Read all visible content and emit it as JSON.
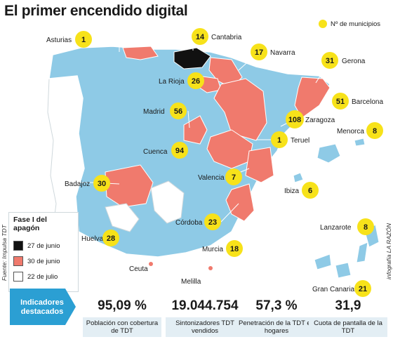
{
  "title": "El primer encendido digital",
  "legend": {
    "municipios_label": "Nº de municipios",
    "phase_title": "Fase I del apagón",
    "phases": [
      {
        "label": "27 de junio",
        "color": "#111111"
      },
      {
        "label": "30 de junio",
        "color": "#f07a6d"
      },
      {
        "label": "22 de julio",
        "color": "#ffffff"
      }
    ]
  },
  "colors": {
    "base_region": "#8ecae6",
    "accent_blue": "#2b9fd3",
    "count_dot": "#f7e21a",
    "phase1": "#111111",
    "phase2": "#f07a6d",
    "phase3": "#ffffff"
  },
  "regions": [
    {
      "name": "Asturias",
      "count": "1"
    },
    {
      "name": "Cantabria",
      "count": "14"
    },
    {
      "name": "Navarra",
      "count": "17"
    },
    {
      "name": "Gerona",
      "count": "31"
    },
    {
      "name": "La Rioja",
      "count": "26"
    },
    {
      "name": "Barcelona",
      "count": "51"
    },
    {
      "name": "Madrid",
      "count": "56"
    },
    {
      "name": "Zaragoza",
      "count": "108"
    },
    {
      "name": "Menorca",
      "count": "8"
    },
    {
      "name": "Teruel",
      "count": "1"
    },
    {
      "name": "Cuenca",
      "count": "94"
    },
    {
      "name": "Valencia",
      "count": "7"
    },
    {
      "name": "Badajoz",
      "count": "30"
    },
    {
      "name": "Ibiza",
      "count": "6"
    },
    {
      "name": "Córdoba",
      "count": "23"
    },
    {
      "name": "Lanzarote",
      "count": "8"
    },
    {
      "name": "Huelva",
      "count": "28"
    },
    {
      "name": "Murcia",
      "count": "18"
    },
    {
      "name": "Ceuta",
      "count": ""
    },
    {
      "name": "Melilla",
      "count": ""
    },
    {
      "name": "Gran Canaria",
      "count": "21"
    }
  ],
  "source": "Fuente: Impulsa TDT",
  "credit": "infografía LA RAZÓN",
  "indicators": {
    "heading": "Indicadores destacados",
    "items": [
      {
        "value": "95,09 %",
        "label": "Población con cobertura de TDT"
      },
      {
        "value": "19.044.754",
        "label": "Sintonizadores TDT vendidos"
      },
      {
        "value": "57,3 %",
        "label": "Penetración de la TDT en hogares"
      },
      {
        "value": "31,9",
        "label": "Cuota de pantalla de la TDT"
      }
    ]
  }
}
